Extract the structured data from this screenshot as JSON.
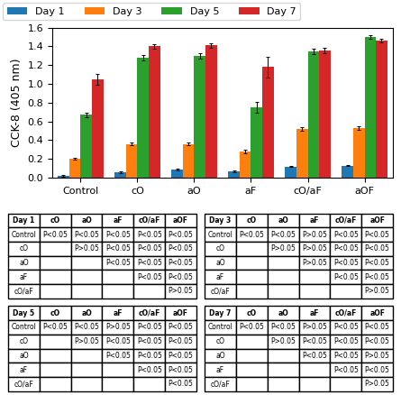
{
  "chart_data": [
    {
      "type": "bar",
      "y_label": "CCK-8 (405 nm)",
      "categories": [
        "Control",
        "cO",
        "aO",
        "aF",
        "cO/aF",
        "aOF"
      ],
      "series": [
        {
          "name": "Day 1",
          "values": [
            0.02,
            0.06,
            0.09,
            0.07,
            0.12,
            0.13
          ],
          "error": [
            0.005,
            0.008,
            0.008,
            0.008,
            0.008,
            0.008
          ]
        },
        {
          "name": "Day 3",
          "values": [
            0.2,
            0.36,
            0.36,
            0.28,
            0.52,
            0.53
          ],
          "error": [
            0.01,
            0.015,
            0.015,
            0.015,
            0.015,
            0.015
          ]
        },
        {
          "name": "Day 5",
          "values": [
            0.67,
            1.28,
            1.3,
            0.75,
            1.35,
            1.5
          ],
          "error": [
            0.025,
            0.025,
            0.03,
            0.055,
            0.03,
            0.02
          ]
        },
        {
          "name": "Day 7",
          "values": [
            1.05,
            1.4,
            1.41,
            1.18,
            1.36,
            1.46
          ],
          "error": [
            0.055,
            0.025,
            0.025,
            0.11,
            0.03,
            0.02
          ]
        }
      ],
      "ylim": [
        0.0,
        1.6
      ],
      "yticks": [
        {
          "value": 0.0,
          "label": "0.0"
        },
        0.2,
        0.4,
        0.6,
        0.8,
        {
          "value": 1.0,
          "label": "1.0"
        },
        1.2,
        1.4,
        1.6
      ],
      "legend": "upper left"
    },
    {
      "type": "table",
      "title": "Day 1",
      "columns": [
        "cO",
        "aO",
        "aF",
        "cO/aF",
        "aOF"
      ],
      "rows": [
        {
          "name": "Control",
          "values": [
            "P<0.05",
            "P<0.05",
            "P<0.05",
            "P<0.05",
            "P<0.05"
          ]
        },
        {
          "name": "cO",
          "values": [
            null,
            "P>0.05",
            "P<0.05",
            "P<0.05",
            "P<0.05"
          ]
        },
        {
          "name": "aO",
          "values": [
            null,
            null,
            "P<0.05",
            "P<0.05",
            "P<0.05"
          ]
        },
        {
          "name": "aF",
          "values": [
            null,
            null,
            null,
            "P<0.05",
            "P<0.05"
          ]
        },
        {
          "name": "cO/aF",
          "values": [
            null,
            null,
            null,
            null,
            "P>0.05"
          ]
        }
      ]
    },
    {
      "type": "table",
      "title": "Day 3",
      "columns": [
        "cO",
        "aO",
        "aF",
        "cO/aF",
        "aOF"
      ],
      "rows": [
        {
          "name": "Control",
          "values": [
            "P<0.05",
            "P<0.05",
            "P>0.05",
            "P<0.05",
            "P<0.05"
          ]
        },
        {
          "name": "cO",
          "values": [
            null,
            "P>0.05",
            "P>0.05",
            "P<0.05",
            "P<0.05"
          ]
        },
        {
          "name": "aO",
          "values": [
            null,
            null,
            "P>0.05",
            "P<0.05",
            "P<0.05"
          ]
        },
        {
          "name": "aF",
          "values": [
            null,
            null,
            null,
            "P<0.05",
            "P<0.05"
          ]
        },
        {
          "name": "cO/aF",
          "values": [
            null,
            null,
            null,
            null,
            "P>0.05"
          ]
        }
      ]
    },
    {
      "type": "table",
      "title": "Day 5",
      "columns": [
        "cO",
        "aO",
        "aF",
        "cO/aF",
        "aOF"
      ],
      "rows": [
        {
          "name": "Control",
          "values": [
            "P<0.05",
            "P<0.05",
            "P>0.05",
            "P<0.05",
            "P<0.05"
          ]
        },
        {
          "name": "cO",
          "values": [
            null,
            "P>0.05",
            "P<0.05",
            "P<0.05",
            "P<0.05"
          ]
        },
        {
          "name": "aO",
          "values": [
            null,
            null,
            "P<0.05",
            "P<0.05",
            "P<0.05"
          ]
        },
        {
          "name": "aF",
          "values": [
            null,
            null,
            null,
            "P<0.05",
            "P<0.05"
          ]
        },
        {
          "name": "cO/aF",
          "values": [
            null,
            null,
            null,
            null,
            "P<0.05"
          ]
        }
      ]
    },
    {
      "type": "table",
      "title": "Day 7",
      "columns": [
        "cO",
        "aO",
        "aF",
        "cO/aF",
        "aOF"
      ],
      "rows": [
        {
          "name": "Control",
          "values": [
            "P<0.05",
            "P<0.05",
            "P>0.05",
            "P<0.05",
            "P<0.05"
          ]
        },
        {
          "name": "cO",
          "values": [
            null,
            "P>0.05",
            "P<0.05",
            "P<0.05",
            "P<0.05"
          ]
        },
        {
          "name": "aO",
          "values": [
            null,
            null,
            "P<0.05",
            "P<0.05",
            "P>0.05"
          ]
        },
        {
          "name": "aF",
          "values": [
            null,
            null,
            null,
            "P<0.05",
            "P<0.05"
          ]
        },
        {
          "name": "cO/aF",
          "values": [
            null,
            null,
            null,
            null,
            "P>0.05"
          ]
        }
      ]
    }
  ]
}
